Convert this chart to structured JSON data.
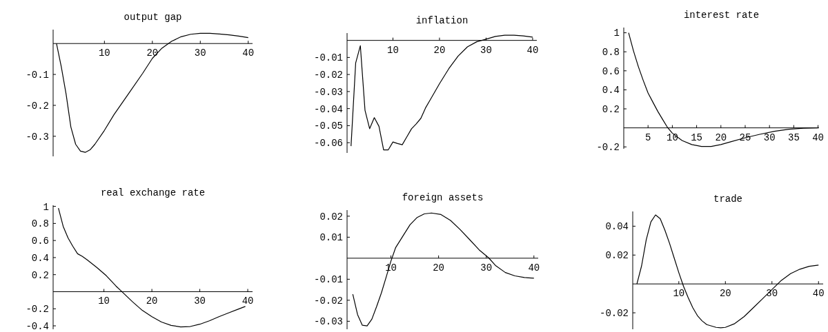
{
  "chart_data": [
    {
      "type": "line",
      "title": "output gap",
      "x": [
        0,
        1,
        2,
        3,
        4,
        5,
        6,
        7,
        8,
        10,
        12,
        15,
        18,
        20,
        22,
        24,
        26,
        28,
        30,
        32,
        34,
        36,
        38,
        40
      ],
      "values": [
        0,
        -0.075,
        -0.163,
        -0.27,
        -0.326,
        -0.348,
        -0.352,
        -0.344,
        -0.326,
        -0.281,
        -0.23,
        -0.163,
        -0.096,
        -0.048,
        -0.015,
        0.007,
        0.022,
        0.03,
        0.033,
        0.033,
        0.031,
        0.028,
        0.024,
        0.019
      ],
      "color": "#000000",
      "xlim": [
        -0.7,
        40.9
      ],
      "ylim": [
        -0.365,
        0.045
      ],
      "xticks": [
        10,
        20,
        30,
        40
      ],
      "yticks": [
        -0.1,
        -0.2,
        -0.3
      ]
    },
    {
      "type": "line",
      "title": "inflation",
      "x": [
        1,
        2,
        3,
        4,
        5,
        6,
        7,
        8,
        9,
        10,
        11,
        12,
        13,
        14,
        15,
        16,
        17,
        18,
        20,
        22,
        24,
        26,
        28,
        30,
        32,
        34,
        36,
        38,
        40
      ],
      "values": [
        -0.062,
        -0.0132,
        -0.0031,
        -0.041,
        -0.0518,
        -0.0453,
        -0.0504,
        -0.0642,
        -0.0642,
        -0.0596,
        -0.0605,
        -0.0612,
        -0.0565,
        -0.0518,
        -0.049,
        -0.0457,
        -0.0396,
        -0.0349,
        -0.0254,
        -0.0166,
        -0.0092,
        -0.0038,
        -0.0008,
        0.0007,
        0.0023,
        0.003,
        0.003,
        0.0026,
        0.0019
      ],
      "color": "#000000",
      "xlim": [
        0.15,
        40.9
      ],
      "ylim": [
        -0.066,
        0.0043
      ],
      "xticks": [
        10,
        20,
        30,
        40
      ],
      "yticks": [
        -0.01,
        -0.02,
        -0.03,
        -0.04,
        -0.05,
        -0.06
      ]
    },
    {
      "type": "line",
      "title": "interest rate",
      "x": [
        1,
        2,
        3,
        4,
        5,
        6,
        7,
        8,
        9,
        10,
        12,
        14,
        16,
        18,
        20,
        22,
        25,
        28,
        31,
        34,
        37,
        40
      ],
      "values": [
        1,
        0.81,
        0.645,
        0.5,
        0.367,
        0.27,
        0.174,
        0.089,
        0.005,
        -0.056,
        -0.133,
        -0.176,
        -0.196,
        -0.196,
        -0.176,
        -0.147,
        -0.104,
        -0.068,
        -0.036,
        -0.015,
        -0.003,
        0
      ],
      "color": "#000000",
      "xlim": [
        0,
        40.2
      ],
      "ylim": [
        -0.22,
        1.055
      ],
      "xticks": [
        5,
        10,
        15,
        20,
        25,
        30,
        35,
        40
      ],
      "yticks": [
        1,
        0.8,
        0.6,
        0.4,
        0.2,
        -0.2
      ]
    },
    {
      "type": "line",
      "title": "real exchange rate",
      "x": [
        0.5,
        1.5,
        2.5,
        3.5,
        4.5,
        5.5,
        6.5,
        8.5,
        10.5,
        12.5,
        14,
        16,
        18,
        20,
        22,
        24,
        26,
        28,
        30,
        32,
        34,
        36,
        38,
        39.5
      ],
      "values": [
        0.98,
        0.765,
        0.632,
        0.533,
        0.445,
        0.413,
        0.373,
        0.285,
        0.187,
        0.067,
        -0.013,
        -0.12,
        -0.219,
        -0.293,
        -0.355,
        -0.395,
        -0.413,
        -0.408,
        -0.381,
        -0.341,
        -0.293,
        -0.248,
        -0.205,
        -0.173
      ],
      "color": "#000000",
      "xlim": [
        -0.6,
        41
      ],
      "ylim": [
        -0.44,
        1.013
      ],
      "xticks": [
        10,
        20,
        30,
        40
      ],
      "yticks": [
        1,
        0.8,
        0.6,
        0.4,
        0.2,
        -0.2,
        -0.4
      ]
    },
    {
      "type": "line",
      "title": "foreign assets",
      "x": [
        2,
        3,
        4,
        5,
        6,
        7,
        8,
        9,
        10,
        11,
        12.5,
        14,
        15.5,
        17,
        18.5,
        20.5,
        22.5,
        24.5,
        26.5,
        28.5,
        30.5,
        32,
        34,
        36,
        38,
        40
      ],
      "values": [
        -0.0171,
        -0.0268,
        -0.0319,
        -0.0322,
        -0.029,
        -0.023,
        -0.0165,
        -0.009,
        -0.0014,
        0.0051,
        0.0105,
        0.0159,
        0.0194,
        0.0211,
        0.0215,
        0.0208,
        0.018,
        0.0137,
        0.0089,
        0.004,
        0.0002,
        -0.0036,
        -0.0068,
        -0.0084,
        -0.0092,
        -0.0095
      ],
      "color": "#000000",
      "xlim": [
        0.8,
        40.9
      ],
      "ylim": [
        -0.0338,
        0.0229
      ],
      "xticks": [
        10,
        20,
        30,
        40
      ],
      "yticks": [
        0.02,
        0.01,
        -0.01,
        -0.02,
        -0.03
      ]
    },
    {
      "type": "line",
      "title": "trade",
      "x": [
        1,
        2,
        3,
        4,
        5,
        6,
        7,
        8,
        9,
        10,
        11,
        12,
        13,
        14,
        15,
        16,
        18,
        19,
        20,
        22,
        24,
        26,
        28,
        30,
        32,
        34,
        36,
        38,
        40
      ],
      "values": [
        0,
        0.0125,
        0.0306,
        0.043,
        0.0478,
        0.0452,
        0.0373,
        0.0282,
        0.018,
        0.0078,
        -0.0016,
        -0.0094,
        -0.0165,
        -0.022,
        -0.0256,
        -0.0282,
        -0.0301,
        -0.0304,
        -0.0301,
        -0.0275,
        -0.0227,
        -0.0165,
        -0.0102,
        -0.0039,
        0.0024,
        0.0071,
        0.0102,
        0.0122,
        0.013
      ],
      "color": "#000000",
      "xlim": [
        0.1,
        41
      ],
      "ylim": [
        -0.0314,
        0.0502
      ],
      "xticks": [
        10,
        20,
        30,
        40
      ],
      "yticks": [
        0.04,
        0.02,
        -0.02
      ]
    }
  ]
}
